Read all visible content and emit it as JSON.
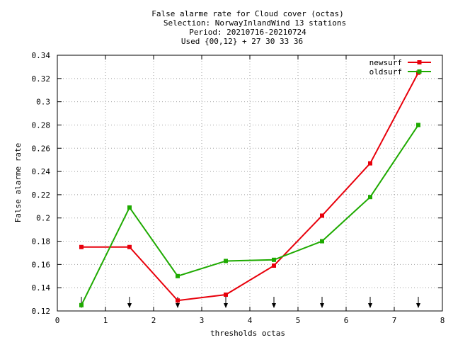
{
  "chart_data": {
    "type": "line",
    "title_lines": [
      "False alarme rate  for Cloud cover (octas)",
      "Selection: NorwayInlandWind     13 stations",
      "Period: 20210716-20210724",
      "Used {00,12} + 27 30 33 36"
    ],
    "xlabel": "thresholds octas",
    "ylabel": "False alarme rate",
    "xlim": [
      0,
      8
    ],
    "ylim": [
      0.12,
      0.34
    ],
    "x_ticks": [
      0,
      1,
      2,
      3,
      4,
      5,
      6,
      7,
      8
    ],
    "x_tick_labels": [
      "0",
      "1",
      "2",
      "3",
      "4",
      "5",
      "6",
      "7",
      "8"
    ],
    "y_ticks": [
      0.12,
      0.14,
      0.16,
      0.18,
      0.2,
      0.22,
      0.24,
      0.26,
      0.28,
      0.3,
      0.32,
      0.34
    ],
    "y_tick_labels": [
      "0.12",
      "0.14",
      "0.16",
      "0.18",
      "0.2",
      "0.22",
      "0.24",
      "0.26",
      "0.28",
      "0.3",
      "0.32",
      "0.34"
    ],
    "grid": true,
    "legend_position": "top-right",
    "x": [
      0.5,
      1.5,
      2.5,
      3.5,
      4.5,
      5.5,
      6.5,
      7.5
    ],
    "series": [
      {
        "name": "newsurf",
        "color": "#e8000b",
        "values": [
          0.175,
          0.175,
          0.129,
          0.134,
          0.159,
          0.202,
          0.247,
          0.325
        ]
      },
      {
        "name": "oldsurf",
        "color": "#1eaa00",
        "values": [
          0.125,
          0.209,
          0.15,
          0.163,
          0.164,
          0.18,
          0.218,
          0.28
        ]
      }
    ],
    "threshold_arrows_x": [
      0.5,
      1.5,
      2.5,
      3.5,
      4.5,
      5.5,
      6.5,
      7.5
    ]
  }
}
